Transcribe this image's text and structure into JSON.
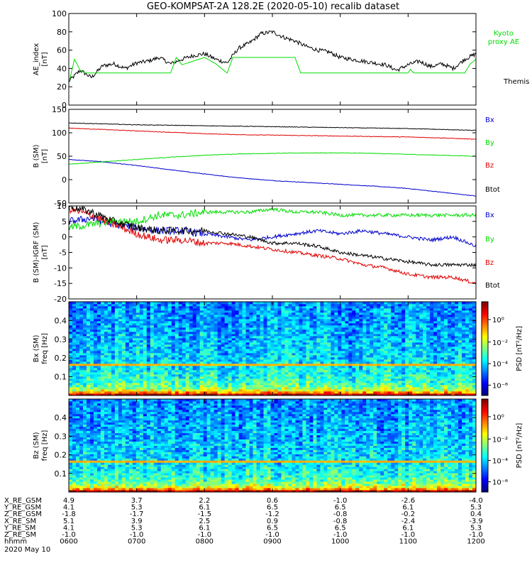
{
  "title": "GEO-KOMPSAT-2A 128.2E (2020-05-10) recalib dataset",
  "date_label": "2020 May 10",
  "colors": {
    "black": "#000000",
    "red": "#e00000",
    "green": "#00dd00",
    "blue": "#0000cc"
  },
  "chart_data": [
    {
      "type": "line",
      "ylabel": [
        "AE_index",
        "[nT]"
      ],
      "ylim": [
        0,
        100
      ],
      "yticks": [
        "0",
        "20",
        "40",
        "60",
        "80",
        "100"
      ],
      "x_range_hhmm": [
        "0600",
        "1200"
      ],
      "series": [
        {
          "name": "Themis AE",
          "color": "#000000",
          "x": [
            "0600",
            "0610",
            "0620",
            "0630",
            "0640",
            "0650",
            "0700",
            "0710",
            "0720",
            "0730",
            "0740",
            "0750",
            "0800",
            "0810",
            "0820",
            "0830",
            "0840",
            "0850",
            "0900",
            "0910",
            "0920",
            "0930",
            "0940",
            "0950",
            "1000",
            "1010",
            "1020",
            "1030",
            "1040",
            "1050",
            "1100",
            "1110",
            "1120",
            "1130",
            "1140",
            "1150",
            "1200"
          ],
          "values": [
            26,
            38,
            30,
            43,
            45,
            40,
            46,
            48,
            52,
            45,
            50,
            54,
            56,
            50,
            46,
            62,
            68,
            78,
            80,
            74,
            70,
            64,
            60,
            58,
            52,
            50,
            48,
            46,
            44,
            38,
            44,
            48,
            42,
            45,
            40,
            50,
            56
          ]
        },
        {
          "name": "Kyoto proxy AE",
          "color": "#00dd00",
          "x": [
            "0600",
            "0605",
            "0610",
            "0615",
            "0620",
            "0700",
            "0730",
            "0735",
            "0740",
            "0800",
            "0810",
            "0820",
            "0825",
            "0900",
            "0920",
            "0925",
            "0930",
            "1100",
            "1102",
            "1105",
            "1150",
            "1155",
            "1200"
          ],
          "values": [
            24,
            50,
            38,
            35,
            35,
            35,
            35,
            52,
            44,
            52,
            45,
            35,
            52,
            52,
            52,
            35,
            35,
            35,
            39,
            35,
            35,
            45,
            50
          ]
        }
      ]
    },
    {
      "type": "line",
      "ylabel": [
        "B (SM)",
        "[nT]"
      ],
      "ylim": [
        -50,
        150
      ],
      "yticks": [
        "-50",
        "0",
        "50",
        "100",
        "150"
      ],
      "x_range_hhmm": [
        "0600",
        "1200"
      ],
      "series": [
        {
          "name": "Bx",
          "color": "#0000cc",
          "x": [
            "0600",
            "0630",
            "0700",
            "0730",
            "0800",
            "0830",
            "0900",
            "0930",
            "1000",
            "1030",
            "1100",
            "1130",
            "1200"
          ],
          "values": [
            43,
            38,
            30,
            21,
            12,
            4,
            -2,
            -6,
            -10,
            -14,
            -19,
            -27,
            -35
          ]
        },
        {
          "name": "By",
          "color": "#00dd00",
          "x": [
            "0600",
            "0630",
            "0700",
            "0730",
            "0800",
            "0830",
            "0900",
            "0930",
            "1000",
            "1030",
            "1100",
            "1130",
            "1200"
          ],
          "values": [
            33,
            38,
            43,
            48,
            52,
            55,
            56,
            57,
            57,
            56,
            54,
            52,
            50
          ]
        },
        {
          "name": "Bz",
          "color": "#e00000",
          "x": [
            "0600",
            "0630",
            "0700",
            "0730",
            "0800",
            "0830",
            "0900",
            "0930",
            "1000",
            "1030",
            "1100",
            "1130",
            "1200"
          ],
          "values": [
            110,
            107,
            104,
            101,
            98,
            96,
            95,
            94,
            93,
            92,
            91,
            89,
            86
          ]
        },
        {
          "name": "Btot",
          "color": "#000000",
          "x": [
            "0600",
            "0630",
            "0700",
            "0730",
            "0800",
            "0830",
            "0900",
            "0930",
            "1000",
            "1030",
            "1100",
            "1130",
            "1200"
          ],
          "values": [
            121,
            119,
            117,
            116,
            115,
            114,
            113,
            112,
            111,
            110,
            109,
            107,
            105
          ]
        }
      ]
    },
    {
      "type": "line",
      "ylabel": [
        "B (SM)-IGRF (SM)",
        "[nT]"
      ],
      "ylim": [
        -20,
        10
      ],
      "yticks": [
        "-20",
        "-15",
        "-10",
        "-5",
        "0",
        "5",
        "10"
      ],
      "x_range_hhmm": [
        "0600",
        "1200"
      ],
      "series": [
        {
          "name": "Bx",
          "color": "#0000cc",
          "x": [
            "0600",
            "0620",
            "0640",
            "0700",
            "0720",
            "0740",
            "0800",
            "0820",
            "0840",
            "0900",
            "0920",
            "0940",
            "1000",
            "1020",
            "1040",
            "1100",
            "1120",
            "1140",
            "1200"
          ],
          "values": [
            5,
            6,
            4,
            3,
            2,
            2,
            1,
            0,
            -1,
            0,
            1,
            2,
            1,
            2,
            1,
            0,
            -1,
            0,
            -3
          ]
        },
        {
          "name": "By",
          "color": "#00dd00",
          "x": [
            "0600",
            "0620",
            "0640",
            "0700",
            "0720",
            "0740",
            "0800",
            "0820",
            "0840",
            "0900",
            "0920",
            "0940",
            "1000",
            "1020",
            "1040",
            "1100",
            "1120",
            "1140",
            "1200"
          ],
          "values": [
            3,
            4,
            5,
            5,
            7,
            7,
            8,
            8,
            8,
            9,
            8,
            8,
            7,
            7,
            7,
            7,
            7,
            7,
            7
          ]
        },
        {
          "name": "Bz",
          "color": "#e00000",
          "x": [
            "0600",
            "0620",
            "0640",
            "0700",
            "0720",
            "0740",
            "0800",
            "0820",
            "0840",
            "0900",
            "0920",
            "0940",
            "1000",
            "1020",
            "1040",
            "1100",
            "1120",
            "1140",
            "1200"
          ],
          "values": [
            9,
            7,
            4,
            1,
            -1,
            -1,
            -2,
            -2,
            -3,
            -4,
            -5,
            -6,
            -7,
            -9,
            -10,
            -12,
            -13,
            -13,
            -15
          ]
        },
        {
          "name": "Btot",
          "color": "#000000",
          "x": [
            "0600",
            "0620",
            "0640",
            "0700",
            "0720",
            "0740",
            "0800",
            "0820",
            "0840",
            "0900",
            "0920",
            "0940",
            "1000",
            "1020",
            "1040",
            "1100",
            "1120",
            "1140",
            "1200"
          ],
          "values": [
            10,
            8,
            5,
            3,
            2,
            2,
            2,
            1,
            0,
            -2,
            -2,
            -3,
            -5,
            -6,
            -7,
            -8,
            -9,
            -9,
            -9
          ]
        }
      ]
    },
    {
      "type": "heatmap",
      "ylabel": [
        "Bx (SM)",
        "freq [Hz]"
      ],
      "ylim": [
        0,
        0.5
      ],
      "yticks": [
        "0.1",
        "0.2",
        "0.3",
        "0.4"
      ],
      "colorbar": {
        "label": "PSD [nT²/Hz]",
        "ticks": [
          "10⁰",
          "10⁻²",
          "10⁻⁴",
          "10⁻⁶"
        ]
      },
      "line_freq": 0.17
    },
    {
      "type": "heatmap",
      "ylabel": [
        "Bz (SM)",
        "freq [Hz]"
      ],
      "ylim": [
        0,
        0.5
      ],
      "yticks": [
        "0.1",
        "0.2",
        "0.3",
        "0.4"
      ],
      "colorbar": {
        "label": "PSD [nT²/Hz]",
        "ticks": [
          "10⁰",
          "10⁻²",
          "10⁻⁴",
          "10⁻⁶"
        ]
      },
      "line_freq": 0.16
    }
  ],
  "legends": [
    [
      {
        "text": "Kyoto",
        "color": "#00dd00"
      },
      {
        "text": "proxy AE",
        "color": "#00dd00"
      },
      {
        "text": "Themis AE",
        "color": "#000000"
      }
    ],
    [
      {
        "text": "Bx",
        "color": "#0000cc"
      },
      {
        "text": "By",
        "color": "#00dd00"
      },
      {
        "text": "Bz",
        "color": "#e00000"
      },
      {
        "text": "Btot",
        "color": "#000000"
      }
    ],
    [
      {
        "text": "Bx",
        "color": "#0000cc"
      },
      {
        "text": "By",
        "color": "#00dd00"
      },
      {
        "text": "Bz",
        "color": "#e00000"
      },
      {
        "text": "Btot",
        "color": "#000000"
      }
    ]
  ],
  "ephemeris": {
    "labels": [
      "X_RE_GSM",
      "Y_RE_GSM",
      "Z_RE_GSM",
      "X_RE_SM",
      "Y_RE_SM",
      "Z_RE_SM",
      "hhmm"
    ],
    "columns": [
      [
        "4.9",
        "4.1",
        "-1.8",
        "5.1",
        "4.1",
        "-1.0",
        "0600"
      ],
      [
        "3.7",
        "5.3",
        "-1.7",
        "3.9",
        "5.3",
        "-1.0",
        "0700"
      ],
      [
        "2.2",
        "6.1",
        "-1.5",
        "2.5",
        "6.1",
        "-1.0",
        "0800"
      ],
      [
        "0.6",
        "6.5",
        "-1.2",
        "0.9",
        "6.5",
        "-1.0",
        "0900"
      ],
      [
        "-1.0",
        "6.5",
        "-0.8",
        "-0.8",
        "6.5",
        "-1.0",
        "1000"
      ],
      [
        "-2.6",
        "6.1",
        "-0.2",
        "-2.4",
        "6.1",
        "-1.0",
        "1100"
      ],
      [
        "-4.0",
        "5.3",
        "0.4",
        "-3.9",
        "5.3",
        "-1.0",
        "1200"
      ]
    ]
  }
}
